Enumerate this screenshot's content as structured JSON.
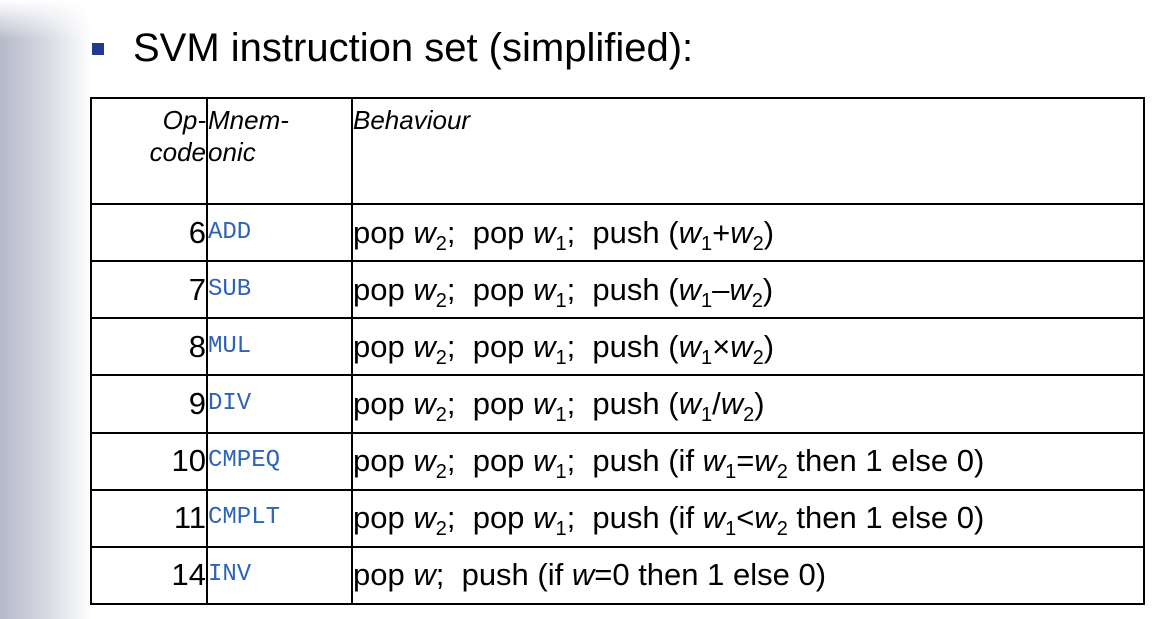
{
  "heading": "SVM instruction set (simplified):",
  "table": {
    "headers": {
      "opcode_line1": "Op-",
      "opcode_line2": "code",
      "mnemonic_line1": "Mnem-",
      "mnemonic_line2": "onic",
      "behaviour": "Behaviour"
    },
    "rows": [
      {
        "opcode": "6",
        "mnemonic": "ADD",
        "behaviour": [
          {
            "t": "pop "
          },
          {
            "v": "w"
          },
          {
            "s": "2"
          },
          {
            "t": ";  pop "
          },
          {
            "v": "w"
          },
          {
            "s": "1"
          },
          {
            "t": ";  push ("
          },
          {
            "v": "w"
          },
          {
            "s": "1"
          },
          {
            "t": "+"
          },
          {
            "v": "w"
          },
          {
            "s": "2"
          },
          {
            "t": ")"
          }
        ]
      },
      {
        "opcode": "7",
        "mnemonic": "SUB",
        "behaviour": [
          {
            "t": "pop "
          },
          {
            "v": "w"
          },
          {
            "s": "2"
          },
          {
            "t": ";  pop "
          },
          {
            "v": "w"
          },
          {
            "s": "1"
          },
          {
            "t": ";  push ("
          },
          {
            "v": "w"
          },
          {
            "s": "1"
          },
          {
            "t": "–"
          },
          {
            "v": "w"
          },
          {
            "s": "2"
          },
          {
            "t": ")"
          }
        ]
      },
      {
        "opcode": "8",
        "mnemonic": "MUL",
        "behaviour": [
          {
            "t": "pop "
          },
          {
            "v": "w"
          },
          {
            "s": "2"
          },
          {
            "t": ";  pop "
          },
          {
            "v": "w"
          },
          {
            "s": "1"
          },
          {
            "t": ";  push ("
          },
          {
            "v": "w"
          },
          {
            "s": "1"
          },
          {
            "t": "×"
          },
          {
            "v": "w"
          },
          {
            "s": "2"
          },
          {
            "t": ")"
          }
        ]
      },
      {
        "opcode": "9",
        "mnemonic": "DIV",
        "behaviour": [
          {
            "t": "pop "
          },
          {
            "v": "w"
          },
          {
            "s": "2"
          },
          {
            "t": ";  pop "
          },
          {
            "v": "w"
          },
          {
            "s": "1"
          },
          {
            "t": ";  push ("
          },
          {
            "v": "w"
          },
          {
            "s": "1"
          },
          {
            "t": "/"
          },
          {
            "v": "w"
          },
          {
            "s": "2"
          },
          {
            "t": ")"
          }
        ]
      },
      {
        "opcode": "10",
        "mnemonic": "CMPEQ",
        "behaviour": [
          {
            "t": "pop "
          },
          {
            "v": "w"
          },
          {
            "s": "2"
          },
          {
            "t": ";  pop "
          },
          {
            "v": "w"
          },
          {
            "s": "1"
          },
          {
            "t": ";  push (if "
          },
          {
            "v": "w"
          },
          {
            "s": "1"
          },
          {
            "t": "="
          },
          {
            "v": "w"
          },
          {
            "s": "2"
          },
          {
            "t": " then 1 else 0)"
          }
        ]
      },
      {
        "opcode": "11",
        "mnemonic": "CMPLT",
        "behaviour": [
          {
            "t": "pop "
          },
          {
            "v": "w"
          },
          {
            "s": "2"
          },
          {
            "t": ";  pop "
          },
          {
            "v": "w"
          },
          {
            "s": "1"
          },
          {
            "t": ";  push (if "
          },
          {
            "v": "w"
          },
          {
            "s": "1"
          },
          {
            "t": "<"
          },
          {
            "v": "w"
          },
          {
            "s": "2"
          },
          {
            "t": " then 1 else 0)"
          }
        ]
      },
      {
        "opcode": "14",
        "mnemonic": "INV",
        "behaviour": [
          {
            "t": "pop "
          },
          {
            "v": "w"
          },
          {
            "t": ";  push (if "
          },
          {
            "v": "w"
          },
          {
            "t": "=0 then 1 else 0)"
          }
        ]
      }
    ]
  },
  "colors": {
    "bullet": "#1f3a8f",
    "mnemonic_text": "#2f63b8",
    "border": "#000000"
  }
}
